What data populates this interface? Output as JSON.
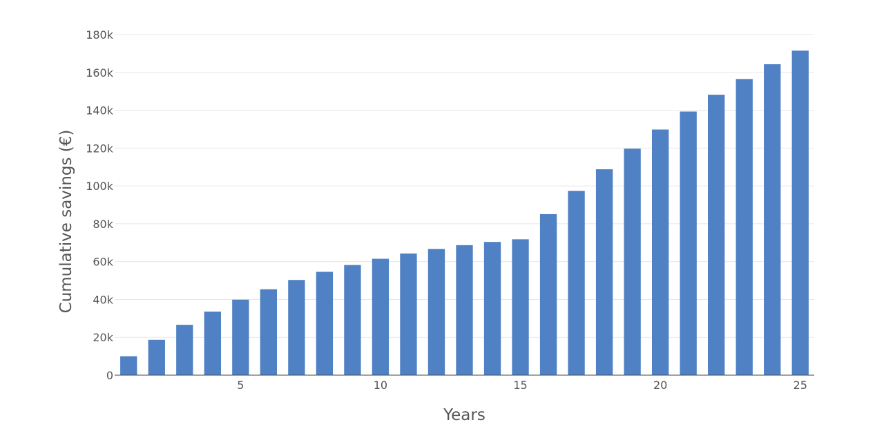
{
  "chart_data": {
    "type": "bar",
    "title": "",
    "xlabel": "Years",
    "ylabel": "Cumulative savings (€)",
    "x": [
      1,
      2,
      3,
      4,
      5,
      6,
      7,
      8,
      9,
      10,
      11,
      12,
      13,
      14,
      15,
      16,
      17,
      18,
      19,
      20,
      21,
      22,
      23,
      24,
      25
    ],
    "values": [
      10000,
      18700,
      26600,
      33600,
      39900,
      45400,
      50300,
      54600,
      58200,
      61500,
      64300,
      66700,
      68700,
      70400,
      71800,
      85100,
      97400,
      108800,
      119700,
      129800,
      139300,
      148200,
      156500,
      164300,
      171500
    ],
    "xlim": [
      0.5,
      25.5
    ],
    "ylim": [
      0,
      180000
    ],
    "x_ticks": [
      5,
      10,
      15,
      20,
      25
    ],
    "y_ticks": [
      0,
      20000,
      40000,
      60000,
      80000,
      100000,
      120000,
      140000,
      160000,
      180000
    ],
    "y_tick_labels": [
      "0",
      "20k",
      "40k",
      "60k",
      "80k",
      "100k",
      "120k",
      "140k",
      "160k",
      "180k"
    ],
    "x_tick_labels": [
      "5",
      "10",
      "15",
      "20",
      "25"
    ],
    "bar_color": "#4f81c4",
    "grid": true,
    "legend": "none"
  }
}
